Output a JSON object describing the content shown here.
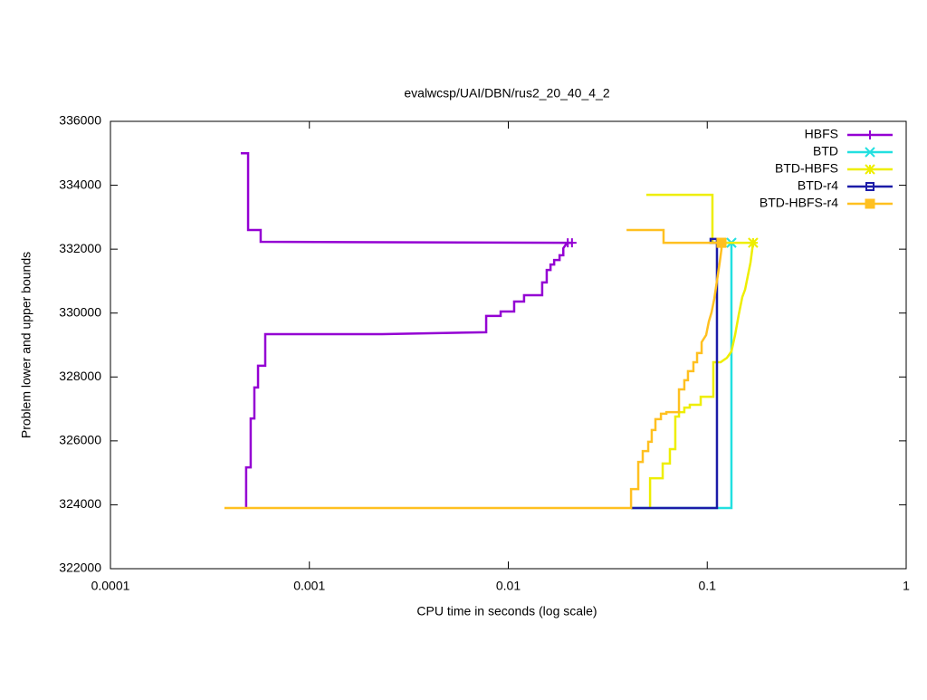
{
  "chart_data": {
    "type": "line",
    "title": "evalwcsp/UAI/DBN/rus2_20_40_4_2",
    "x_label": "CPU time in seconds (log scale)",
    "y_label": "Problem lower and upper bounds",
    "x_scale": "log",
    "xlim": [
      0.0001,
      1
    ],
    "xticks": [
      0.0001,
      0.001,
      0.01,
      0.1,
      1
    ],
    "ylim": [
      322000,
      336000
    ],
    "yticks": [
      322000,
      324000,
      326000,
      328000,
      330000,
      332000,
      334000,
      336000
    ],
    "legend": "top-right",
    "series": [
      {
        "name": "HBFS",
        "color": "#9400d3",
        "marker": "plus",
        "x": [
          0.000452,
          0.000492,
          0.000492,
          0.000569,
          0.000569,
          0.0209,
          null,
          0.000481,
          0.000481,
          0.000507,
          0.000507,
          0.000529,
          0.000529,
          0.000552,
          0.000552,
          0.0006,
          0.0006,
          0.00232,
          0.00774,
          0.00774,
          0.00915,
          0.00915,
          0.0107,
          0.0107,
          0.012,
          0.012,
          0.0148,
          0.0148,
          0.0156,
          0.0156,
          0.0163,
          0.0163,
          0.017,
          0.017,
          0.0181,
          0.0181,
          0.0189,
          0.0189,
          0.0195,
          0.0199
        ],
        "values": [
          335000,
          335000,
          332600,
          332600,
          332230,
          332200,
          null,
          323900,
          325170,
          325170,
          326700,
          326700,
          327670,
          327670,
          328350,
          328350,
          329340,
          329340,
          329400,
          329910,
          329910,
          330050,
          330050,
          330360,
          330360,
          330560,
          330560,
          330960,
          330960,
          331350,
          331350,
          331520,
          331520,
          331660,
          331660,
          331810,
          331810,
          332030,
          332150,
          332200
        ]
      },
      {
        "name": "BTD",
        "color": "#22e0e0",
        "marker": "cross",
        "x": [
          0.0414,
          0.1323,
          0.1323,
          null,
          0.1062,
          0.1323
        ],
        "values": [
          323900,
          323900,
          332200,
          null,
          332200,
          332200
        ]
      },
      {
        "name": "BTD-HBFS",
        "color": "#eeee00",
        "marker": "star",
        "x": [
          0.0494,
          0.1062,
          0.1062,
          0.17,
          null,
          0.0516,
          0.0516,
          0.0597,
          0.0597,
          0.0649,
          0.0649,
          0.0691,
          0.0691,
          0.0721,
          0.0721,
          0.0767,
          0.0767,
          0.0817,
          0.0817,
          0.0927,
          0.0927,
          0.1073,
          0.1073,
          0.1167,
          0.1256,
          0.1323,
          0.138,
          0.1439,
          0.15,
          0.1549,
          0.1598,
          0.165,
          0.17
        ],
        "values": [
          333700,
          333700,
          332200,
          332200,
          null,
          323900,
          324830,
          324830,
          325290,
          325290,
          325740,
          325740,
          326760,
          326760,
          326900,
          326900,
          327040,
          327040,
          327130,
          327130,
          327380,
          327380,
          328460,
          328460,
          328600,
          328800,
          329310,
          329940,
          330500,
          330730,
          331150,
          331580,
          332200
        ]
      },
      {
        "name": "BTD-r4",
        "color": "#1c1ca8",
        "marker": "square-open",
        "x": [
          0.0414,
          0.1119,
          0.1119,
          0.104,
          0.104,
          0.1179
        ],
        "values": [
          323900,
          323900,
          332320,
          332320,
          332200,
          332200
        ]
      },
      {
        "name": "BTD-HBFS-r4",
        "color": "#ffc020",
        "marker": "square-filled",
        "x": [
          0.0393,
          0.0603,
          0.0603,
          0.1179,
          null,
          0.000374,
          0.0414,
          0.0414,
          0.045,
          0.045,
          0.0474,
          0.0474,
          0.0505,
          0.0505,
          0.0526,
          0.0526,
          0.0549,
          0.0549,
          0.0585,
          0.0585,
          0.0623,
          0.0623,
          0.0721,
          0.0721,
          0.0767,
          0.0767,
          0.08,
          0.08,
          0.0852,
          0.0852,
          0.0889,
          0.0889,
          0.0937,
          0.0937,
          0.0987,
          0.1019,
          0.1051,
          0.1085,
          0.1119,
          0.1155,
          0.1179,
          0.1179
        ],
        "values": [
          332600,
          332600,
          332200,
          332200,
          null,
          323900,
          323900,
          324490,
          324490,
          325340,
          325340,
          325680,
          325680,
          325970,
          325970,
          326340,
          326340,
          326680,
          326680,
          326850,
          326850,
          326900,
          326900,
          327610,
          327610,
          327900,
          327900,
          328180,
          328180,
          328460,
          328460,
          328750,
          328750,
          329090,
          329310,
          329740,
          330020,
          330450,
          331010,
          331580,
          332000,
          332200
        ]
      }
    ]
  }
}
